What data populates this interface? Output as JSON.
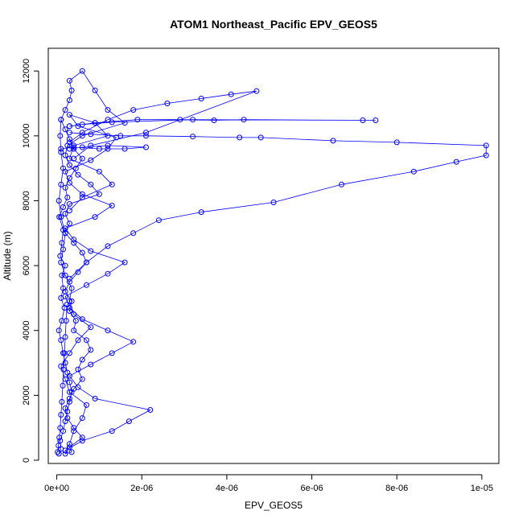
{
  "chart_data": {
    "type": "line",
    "title": "ATOM1 Northeast_Pacific EPV_GEOS5",
    "xlabel": "EPV_GEOS5",
    "ylabel": "Altitude (m)",
    "xlim": [
      -2e-07,
      1.04e-05
    ],
    "ylim": [
      -100,
      12700
    ],
    "x_ticks": [
      0,
      2e-06,
      4e-06,
      6e-06,
      8e-06,
      1e-05
    ],
    "x_tick_labels": [
      "0e+00",
      "2e-06",
      "4e-06",
      "6e-06",
      "8e-06",
      "1e-05"
    ],
    "y_ticks": [
      0,
      2000,
      4000,
      6000,
      8000,
      10000,
      12000
    ],
    "y_tick_labels": [
      "0",
      "2000",
      "4000",
      "6000",
      "8000",
      "10000",
      "12000"
    ],
    "grid": false,
    "legend": "none",
    "colors": {
      "series": "#0000ff",
      "axis": "#000000"
    },
    "series": [
      {
        "x": [
          5e-08,
          1e-07,
          8e-08,
          1.5e-07,
          2e-07,
          2.5e-07,
          3e-07,
          3.5e-07,
          3e-07,
          2.5e-07,
          2e-07,
          1.5e-07,
          1e-07,
          5e-08,
          1.2e-07,
          1.8e-07,
          1e-07,
          1.5e-07,
          1.2e-07,
          2e-07,
          8e-08,
          1.2e-07,
          1.5e-07,
          6e-08,
          1.5e-07,
          2.5e-07,
          2e-07,
          3e-07,
          4.5e-07,
          6e-07,
          4e-07,
          3e-07,
          2e-07,
          1e-07,
          2e-07,
          3e-07,
          3.5e-07,
          3e-07,
          6e-07,
          9e-07,
          1.2e-06,
          1.6e-06,
          6e-07,
          2.5e-07,
          2e-07,
          3e-07,
          5e-07,
          8e-07,
          1e-06,
          3e-07,
          2e-07,
          3e-07,
          2e-07,
          4e-07,
          6e-07,
          7e-07,
          5e-07,
          3e-07,
          2e-07,
          3.5e-07,
          3e-07,
          4.5e-07,
          4e-07,
          7e-07,
          8e-07,
          6e-07,
          5e-07,
          6e-07,
          4e-07,
          3e-07,
          2e-07,
          2.5e-07,
          4e-07,
          6e-07,
          3e-07,
          3.5e-07,
          2e-07,
          3e-07,
          4e-07,
          6e-07,
          7e-07,
          3e-07,
          2e-07,
          1e-07,
          3e-07,
          5e-07,
          8e-07,
          4e-07,
          3e-07,
          3.5e-07,
          2e-07,
          1e-07,
          1.5e-07,
          2e-07,
          1e-07,
          5e-08,
          1e-07,
          1.5e-07,
          1e-07,
          8e-08,
          1e-07
        ],
        "y": [
          200,
          350,
          600,
          900,
          1200,
          1500,
          1800,
          2100,
          2400,
          2700,
          3000,
          3300,
          3700,
          4000,
          4300,
          4700,
          5000,
          5300,
          5700,
          6000,
          6300,
          6700,
          7100,
          7500,
          7800,
          8100,
          8400,
          8700,
          9000,
          9300,
          9600,
          9900,
          10200,
          10500,
          10800,
          11100,
          11400,
          11700,
          12000,
          11400,
          10800,
          10400,
          10000,
          9700,
          9400,
          9100,
          8800,
          8500,
          8200,
          7900,
          7600,
          7300,
          7000,
          6700,
          6400,
          6100,
          5800,
          5500,
          5200,
          4900,
          4600,
          4300,
          4000,
          3700,
          3400,
          3100,
          2800,
          2500,
          2200,
          1900,
          1600,
          1300,
          1000,
          700,
          400,
          250,
          200,
          500,
          900,
          1300,
          1700,
          2100,
          2500,
          2900,
          3300,
          3700,
          4100,
          4500,
          4900,
          5300,
          5700,
          6100,
          6500,
          7000,
          7500,
          8000,
          8500,
          9000,
          9500,
          10000,
          10500
        ]
      },
      {
        "x": [
          2e-07,
          6e-07,
          1.3e-06,
          1.7e-06,
          2.2e-06,
          9e-07,
          5e-07,
          3e-07,
          8e-07,
          1.3e-06,
          1.8e-06,
          1.2e-06,
          6e-07,
          3e-07,
          2e-07,
          7e-07,
          1.2e-06,
          1.6e-06,
          8e-07,
          4e-07,
          2e-07,
          9e-07,
          1.3e-06,
          6e-07,
          3e-07,
          2e-07,
          8e-07,
          1.2e-06,
          1.4e-06,
          5e-07,
          3e-07,
          9e-07,
          1.2e-06,
          4e-07,
          3e-07,
          1e-06,
          1.3e-06,
          6e-07,
          3e-07
        ],
        "y": [
          300,
          600,
          900,
          1200,
          1550,
          1900,
          2250,
          2600,
          2950,
          3300,
          3650,
          4000,
          4350,
          4700,
          5050,
          5400,
          5750,
          6100,
          6450,
          6800,
          7150,
          7500,
          7850,
          8200,
          8550,
          8900,
          9250,
          9600,
          9950,
          10300,
          10650,
          10400,
          10000,
          9700,
          9300,
          8900,
          8500,
          8100,
          7700
        ]
      },
      {
        "x": [
          3e-07,
          7e-07,
          1.2e-06,
          1.8e-06,
          2.4e-06,
          3.4e-06,
          5.1e-06,
          6.7e-06,
          8.4e-06,
          9.4e-06,
          1.01e-05,
          1.01e-05,
          8e-06,
          6.5e-06,
          4.8e-06,
          4.3e-06,
          3.2e-06,
          2.1e-06,
          1.5e-06,
          8e-07,
          3e-07
        ],
        "y": [
          5600,
          6100,
          6600,
          7000,
          7400,
          7650,
          7950,
          8500,
          8900,
          9200,
          9400,
          9700,
          9800,
          9850,
          9950,
          9950,
          9980,
          10000,
          10000,
          10050,
          10100
        ]
      },
      {
        "x": [
          3e-07,
          9e-07,
          1.9e-06,
          2.9e-06,
          3.7e-06,
          4.4e-06,
          7.2e-06,
          7.5e-06,
          3.2e-06,
          1.3e-06,
          6e-07,
          3e-07
        ],
        "y": [
          10300,
          10400,
          10500,
          10500,
          10480,
          10500,
          10480,
          10480,
          10500,
          10420,
          10350,
          10300
        ]
      },
      {
        "x": [
          3e-07,
          6e-07,
          1.2e-06,
          1.8e-06,
          2.6e-06,
          3.4e-06,
          4.1e-06,
          4.7e-06,
          2.1e-06,
          8e-07,
          4e-07
        ],
        "y": [
          9800,
          10100,
          10500,
          10800,
          11000,
          11150,
          11280,
          11380,
          10100,
          9700,
          9300
        ]
      },
      {
        "x": [
          1e-07,
          4e-07,
          1e-06,
          1.6e-06,
          2.1e-06,
          1.2e-06,
          6e-07,
          3e-07
        ],
        "y": [
          9600,
          9650,
          9600,
          9600,
          9650,
          9700,
          9650,
          9600
        ]
      },
      {
        "x": [
          2e-08,
          4e-08,
          6e-08,
          8e-08,
          1e-07,
          1.2e-07,
          1.4e-07,
          1.6e-07,
          1.8e-07,
          2e-07,
          2.2e-07,
          2.4e-07
        ],
        "y": [
          250,
          450,
          700,
          1000,
          1400,
          1800,
          2300,
          2800,
          3300,
          3800,
          4300,
          4800
        ]
      }
    ]
  }
}
